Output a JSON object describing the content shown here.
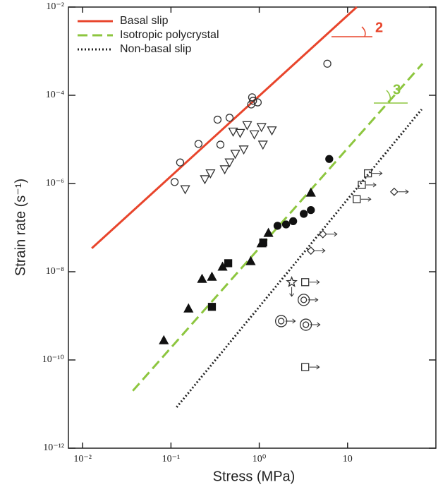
{
  "chart_data": {
    "type": "scatter",
    "xlabel": "Stress (MPa)",
    "ylabel": "Strain rate (s⁻¹)",
    "log_x": true,
    "log_y": true,
    "xlim": [
      0.0069,
      100
    ],
    "ylim": [
      1e-12,
      0.01
    ],
    "xticks": [
      {
        "value": 0.01,
        "label": "10⁻²"
      },
      {
        "value": 0.1,
        "label": "10⁻¹"
      },
      {
        "value": 1,
        "label": "10⁰"
      },
      10
    ],
    "yticks": [
      {
        "value": 1e-12,
        "label": "10⁻¹²"
      },
      {
        "value": 1e-10,
        "label": "10⁻¹⁰"
      },
      {
        "value": 1e-08,
        "label": "10⁻⁸"
      },
      {
        "value": 1e-06,
        "label": "10⁻⁶"
      },
      {
        "value": 0.0001,
        "label": "10⁻⁴"
      },
      {
        "value": 0.01,
        "label": "10⁻²"
      }
    ],
    "annotations": [
      "2",
      "3"
    ],
    "series": [
      {
        "name": "Basal slip",
        "type": "line",
        "dash": "solid",
        "color": "#e8452c",
        "x": [
          0.0127,
          12.7
        ],
        "values": [
          3.4e-08,
          0.01
        ]
      },
      {
        "name": "Isotropic polycrystal",
        "type": "line",
        "dash": "dashed",
        "color": "#8dc63f",
        "x": [
          0.037,
          70.5
        ],
        "values": [
          2e-11,
          0.00052
        ]
      },
      {
        "name": "Non-basal slip",
        "type": "line",
        "dash": "dotted",
        "color": "#222222",
        "x": [
          0.116,
          69
        ],
        "values": [
          8.5e-12,
          4.8e-05
        ]
      },
      {
        "type": "marker",
        "marker": "circle-open",
        "color": "#333333",
        "x": [
          0.11,
          0.127,
          0.205,
          0.337,
          0.363,
          0.461,
          0.83,
          0.81,
          0.85,
          0.96,
          5.9
        ],
        "values": [
          1.08e-06,
          3e-06,
          7.9e-06,
          2.8e-05,
          7.6e-06,
          3.1e-05,
          9e-05,
          6.2e-05,
          7.5e-05,
          6.9e-05,
          0.00052
        ]
      },
      {
        "type": "marker",
        "marker": "triangle-down-open",
        "color": "#333333",
        "x": [
          0.145,
          0.242,
          0.28,
          0.406,
          0.461,
          0.535,
          0.667,
          0.506,
          0.608,
          0.73,
          0.88,
          1.06,
          1.39,
          1.1
        ],
        "values": [
          7.4e-07,
          1.25e-06,
          1.7e-06,
          2.1e-06,
          3e-06,
          4.7e-06,
          5.9e-06,
          1.5e-05,
          1.4e-05,
          2.1e-05,
          1.3e-05,
          1.9e-05,
          1.6e-05,
          7.6e-06
        ]
      },
      {
        "type": "marker",
        "marker": "circle-filled",
        "color": "#111111",
        "x": [
          6.2,
          3.84,
          3.19,
          2.42,
          2.01,
          1.61
        ],
        "values": [
          3.6e-06,
          2.5e-07,
          2.05e-07,
          1.4e-07,
          1.18e-07,
          1.1e-07
        ]
      },
      {
        "type": "marker",
        "marker": "triangle-filled",
        "color": "#111111",
        "x": [
          3.84,
          1.27,
          1.06,
          0.8,
          0.384,
          0.291,
          0.225,
          0.158,
          0.083
        ],
        "values": [
          6.2e-07,
          7.6e-08,
          4.4e-08,
          1.74e-08,
          1.3e-08,
          7.7e-09,
          6.9e-09,
          1.47e-09,
          2.8e-10
        ]
      },
      {
        "type": "marker",
        "marker": "square-filled",
        "color": "#111111",
        "x": [
          1.11,
          0.445,
          0.291
        ],
        "values": [
          4.6e-08,
          1.56e-08,
          1.6e-09
        ]
      },
      {
        "type": "marker",
        "marker": "square-open",
        "arrow": "right",
        "color": "#333333",
        "x": [
          17,
          14.5,
          12.7,
          3.31,
          3.31
        ],
        "values": [
          1.7e-06,
          9.3e-07,
          4.4e-07,
          5.8e-09,
          6.9e-11
        ]
      },
      {
        "type": "marker",
        "marker": "double-circle",
        "arrow": "right",
        "color": "#333333",
        "x": [
          3.19,
          1.77,
          3.37
        ],
        "values": [
          2.3e-09,
          7.6e-10,
          6.3e-10
        ]
      },
      {
        "type": "marker",
        "marker": "diamond-open",
        "arrow": "right",
        "color": "#333333",
        "x": [
          33.7,
          5.25,
          3.84
        ],
        "values": [
          6.5e-07,
          7.1e-08,
          3e-08
        ]
      },
      {
        "type": "marker",
        "marker": "star-open",
        "arrow": "down",
        "color": "#333333",
        "x": [
          2.33
        ],
        "values": [
          5.8e-09
        ]
      }
    ]
  }
}
